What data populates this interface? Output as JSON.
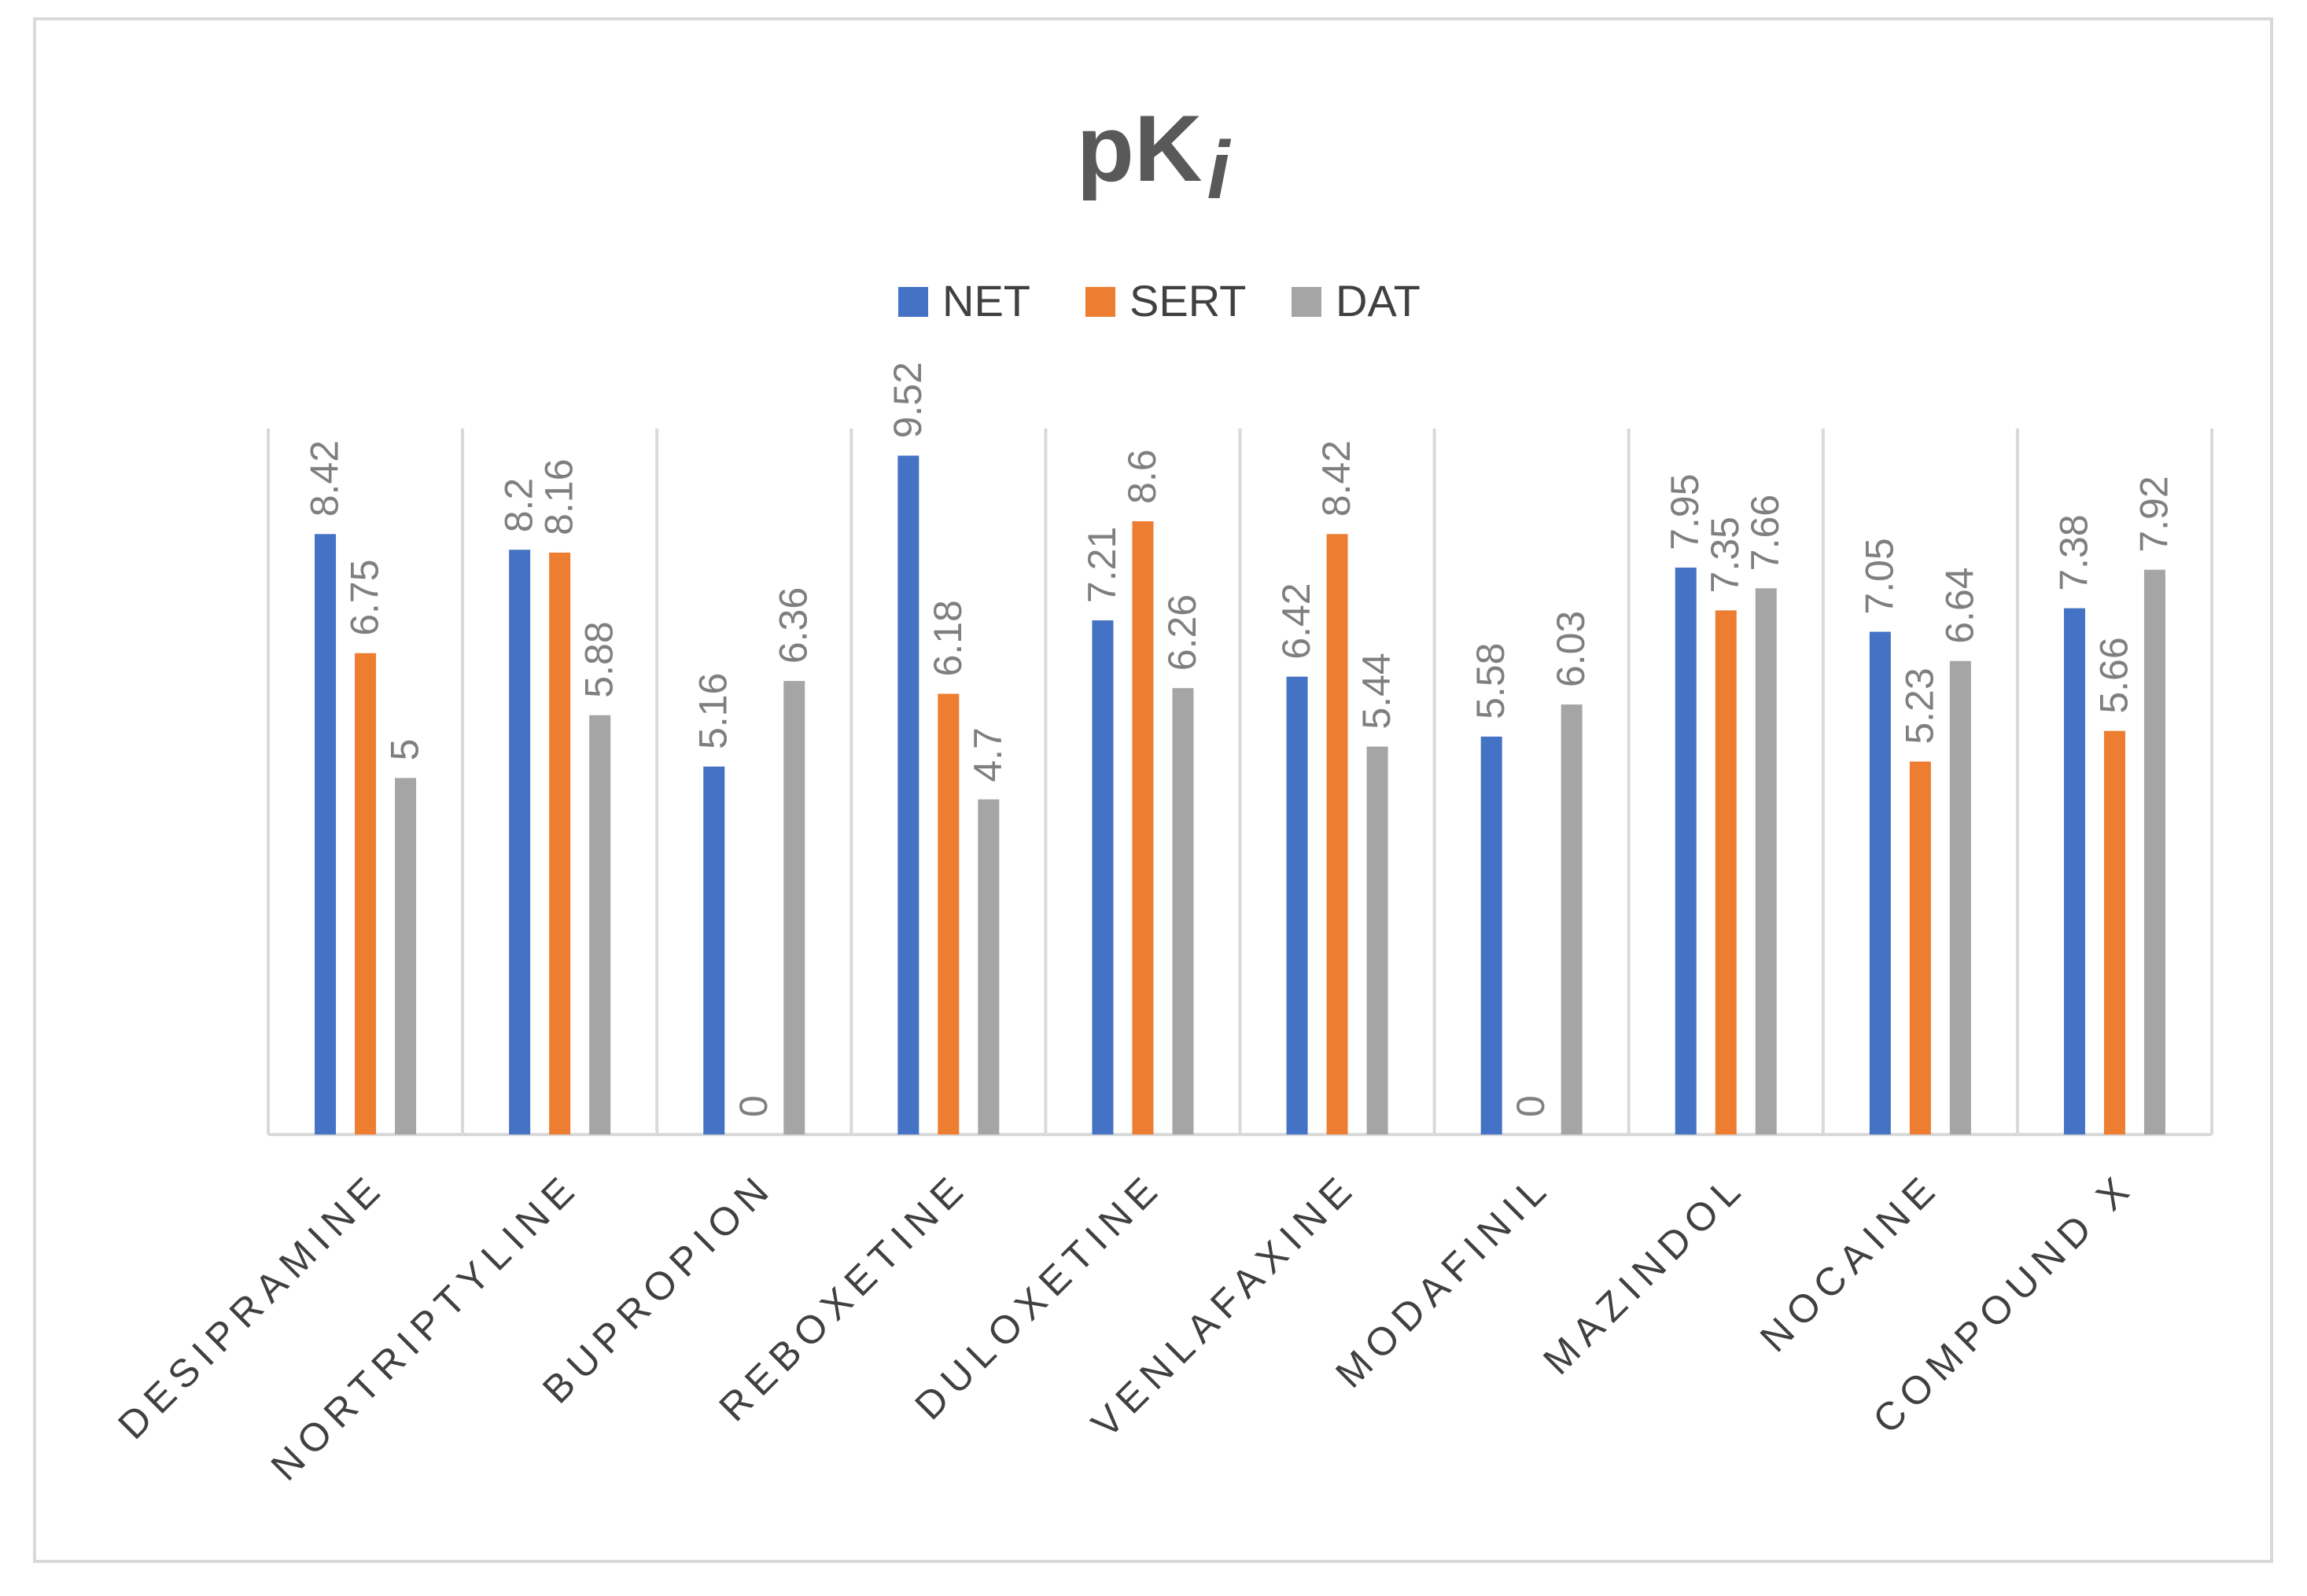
{
  "chart_data": {
    "type": "bar",
    "title": "pK",
    "title_subscript": "i",
    "categories": [
      "DESIPRAMINE",
      "NORTRIPTYLINE",
      "BUPROPION",
      "REBOXETINE",
      "DULOXETINE",
      "VENLAFAXINE",
      "MODAFINIL",
      "MAZINDOL",
      "NOCAINE",
      "COMPOUND X"
    ],
    "series": [
      {
        "name": "NET",
        "color": "#4472c4",
        "values": [
          8.42,
          8.2,
          5.16,
          9.52,
          7.21,
          6.42,
          5.58,
          7.95,
          7.05,
          7.38
        ]
      },
      {
        "name": "SERT",
        "color": "#ed7d31",
        "values": [
          6.75,
          8.16,
          0,
          6.18,
          8.6,
          8.42,
          0,
          7.35,
          5.23,
          5.66
        ]
      },
      {
        "name": "DAT",
        "color": "#a5a5a5",
        "values": [
          5,
          5.88,
          6.36,
          4.7,
          6.26,
          5.44,
          6.03,
          7.66,
          6.64,
          7.92
        ]
      }
    ],
    "legend_position": "top",
    "xlabel": "",
    "ylabel": "",
    "ylim": [
      0,
      10
    ],
    "grid": "vertical category separators",
    "data_labels": true
  }
}
